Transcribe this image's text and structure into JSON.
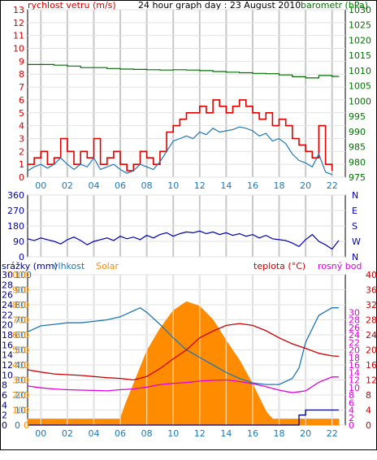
{
  "chart_data": [
    {
      "type": "line",
      "title": "24 hour graph day : 23 August 2010",
      "left_axis_label": "rychlost vetru (m/s)",
      "right_axis_label": "barometr (hPa)",
      "x_tick_labels": [
        "00",
        "02",
        "04",
        "06",
        "08",
        "10",
        "12",
        "14",
        "16",
        "18",
        "20",
        "22"
      ],
      "left_ticks": [
        "0",
        "1",
        "2",
        "3",
        "4",
        "5",
        "6",
        "7",
        "8",
        "9",
        "10",
        "11",
        "12",
        "13"
      ],
      "right_ticks": [
        "975",
        "980",
        "985",
        "990",
        "995",
        "1000",
        "1005",
        "1010",
        "1015",
        "1020",
        "1025",
        "1030"
      ],
      "left_ylim": [
        0,
        13
      ],
      "right_ylim": [
        975,
        1030
      ],
      "x_range": [
        23,
        47
      ],
      "grid": true,
      "series": [
        {
          "role": "gust",
          "color": "#e00000",
          "axis": "left",
          "x": [
            23.0,
            23.5,
            24.0,
            24.5,
            25.0,
            25.5,
            26.0,
            26.5,
            27.0,
            27.5,
            28.0,
            28.5,
            29.0,
            29.5,
            30.0,
            30.5,
            31.0,
            31.5,
            32.0,
            32.5,
            33.0,
            33.5,
            34.0,
            34.5,
            35.0,
            35.5,
            36.0,
            36.5,
            37.0,
            37.5,
            38.0,
            38.5,
            39.0,
            39.5,
            40.0,
            40.5,
            41.0,
            41.5,
            42.0,
            42.5,
            43.0,
            43.5,
            44.0,
            44.5,
            45.0,
            45.5,
            46.0
          ],
          "values": [
            1,
            1.5,
            2,
            1,
            1.5,
            3,
            2,
            1,
            2,
            1.5,
            3,
            1,
            1.5,
            2,
            1,
            0.5,
            1,
            2,
            1.5,
            1,
            2,
            3.5,
            4,
            4.5,
            5,
            5,
            5.5,
            5,
            6,
            5.5,
            5,
            5.5,
            6,
            5.5,
            5,
            4.5,
            5,
            4,
            4.5,
            4,
            3,
            2.5,
            2,
            1.5,
            4,
            1,
            0.5
          ]
        },
        {
          "role": "average",
          "color": "#1f77b4",
          "axis": "left",
          "x": [
            23.0,
            23.5,
            24.0,
            24.5,
            25.0,
            25.5,
            26.0,
            26.5,
            27.0,
            27.5,
            28.0,
            28.5,
            29.0,
            29.5,
            30.0,
            30.5,
            31.0,
            31.5,
            32.0,
            32.5,
            33.0,
            33.5,
            34.0,
            34.5,
            35.0,
            35.5,
            36.0,
            36.5,
            37.0,
            37.5,
            38.0,
            38.5,
            39.0,
            39.5,
            40.0,
            40.5,
            41.0,
            41.5,
            42.0,
            42.5,
            43.0,
            43.5,
            44.0,
            44.5,
            45.0,
            45.5,
            46.0
          ],
          "values": [
            0.5,
            0.8,
            1,
            0.7,
            1,
            1.5,
            1,
            0.6,
            1,
            0.8,
            1.5,
            0.6,
            0.8,
            1,
            0.6,
            0.3,
            0.5,
            1,
            0.8,
            0.6,
            1.2,
            2,
            2.8,
            3,
            3.2,
            3,
            3.5,
            3.3,
            3.8,
            3.5,
            3.6,
            3.7,
            3.9,
            3.8,
            3.6,
            3.2,
            3.4,
            2.8,
            3,
            2.6,
            1.8,
            1.3,
            1.1,
            0.8,
            1.8,
            0.4,
            0.2
          ]
        },
        {
          "role": "pressure",
          "color": "#007000",
          "axis": "right",
          "x": [
            23,
            24,
            25,
            26,
            27,
            28,
            29,
            30,
            31,
            32,
            33,
            34,
            35,
            36,
            37,
            38,
            39,
            40,
            41,
            42,
            43,
            44,
            45,
            46,
            46.5
          ],
          "values": [
            1012,
            1012,
            1011.8,
            1011.5,
            1011,
            1011,
            1010.7,
            1010.5,
            1010.4,
            1010.3,
            1010.2,
            1010.3,
            1010.2,
            1010,
            1009.7,
            1009.5,
            1009.3,
            1009.1,
            1009,
            1008.6,
            1008,
            1007.6,
            1008.4,
            1008.1,
            1008.2
          ]
        }
      ]
    },
    {
      "type": "line",
      "left_ticks": [
        "0",
        "90",
        "180",
        "270",
        "360"
      ],
      "left_ylim": [
        0,
        360
      ],
      "right_ticks": [
        "N",
        "W",
        "S",
        "E",
        "N"
      ],
      "x_range": [
        23,
        47
      ],
      "grid": true,
      "series": [
        {
          "role": "wind-direction",
          "color": "#0000b0",
          "x": [
            23.0,
            23.5,
            24.0,
            24.5,
            25.0,
            25.5,
            26.0,
            26.5,
            27.0,
            27.5,
            28.0,
            28.5,
            29.0,
            29.5,
            30.0,
            30.5,
            31.0,
            31.5,
            32.0,
            32.5,
            33.0,
            33.5,
            34.0,
            34.5,
            35.0,
            35.5,
            36.0,
            36.5,
            37.0,
            37.5,
            38.0,
            38.5,
            39.0,
            39.5,
            40.0,
            40.5,
            41.0,
            41.5,
            42.0,
            42.5,
            43.0,
            43.5,
            44.0,
            44.5,
            45.0,
            45.5,
            46.0,
            46.5
          ],
          "values": [
            105,
            95,
            110,
            100,
            90,
            75,
            100,
            115,
            95,
            70,
            90,
            100,
            110,
            95,
            120,
            105,
            115,
            100,
            125,
            110,
            130,
            140,
            120,
            135,
            145,
            140,
            150,
            135,
            145,
            130,
            140,
            125,
            135,
            120,
            130,
            110,
            125,
            105,
            100,
            95,
            80,
            60,
            100,
            130,
            90,
            70,
            45,
            95
          ]
        }
      ]
    },
    {
      "type": "area",
      "left_axis_labels": [
        "srážky (mm)",
        "vlhkost",
        "Solar"
      ],
      "right_axis_labels": [
        "teplota (°C)",
        "rosný bod"
      ],
      "x_tick_labels": [
        "00",
        "02",
        "04",
        "06",
        "08",
        "10",
        "12",
        "14",
        "16",
        "18",
        "20",
        "22"
      ],
      "ticks_rain": [
        "0",
        "2",
        "4",
        "6",
        "8",
        "10",
        "12",
        "14",
        "16",
        "18",
        "20",
        "22",
        "24",
        "26",
        "28",
        "30"
      ],
      "ticks_humidity": [
        "0",
        "10",
        "20",
        "30",
        "40",
        "50",
        "60",
        "70",
        "80",
        "90",
        "100"
      ],
      "ticks_solar": [
        "0",
        "100",
        "200",
        "300",
        "400",
        "500",
        "600",
        "700",
        "800",
        "900",
        "1000"
      ],
      "ticks_temp_outer": [
        "0",
        "4",
        "8",
        "12",
        "16",
        "20",
        "24",
        "28",
        "32",
        "36",
        "40"
      ],
      "ticks_temp_inner": [
        "0",
        "2",
        "4",
        "6",
        "8",
        "10",
        "12",
        "14",
        "16",
        "18",
        "20",
        "22",
        "24",
        "26",
        "28",
        "30"
      ],
      "ylim_humidity": [
        0,
        100
      ],
      "ylim_solar": [
        0,
        1000
      ],
      "ylim_temp": [
        0,
        40
      ],
      "ylim_rain": [
        0,
        30
      ],
      "x_range": [
        23,
        47
      ],
      "grid": true,
      "series": [
        {
          "role": "humidity",
          "color": "#1f77b4",
          "x": [
            23,
            24,
            25,
            26,
            27,
            28,
            29,
            30,
            31,
            31.5,
            32,
            33,
            34,
            35,
            36,
            37,
            38,
            39,
            40,
            41,
            42,
            43,
            43.5,
            44,
            45,
            46,
            46.5
          ],
          "values": [
            62,
            66,
            67,
            68,
            68,
            69,
            70,
            72,
            76,
            78,
            75,
            67,
            58,
            50,
            45,
            40,
            35,
            31,
            28,
            27,
            27,
            31,
            38,
            55,
            73,
            78,
            78
          ]
        },
        {
          "role": "temperature",
          "color": "#cc0000",
          "x": [
            23,
            24,
            25,
            26,
            27,
            28,
            29,
            30,
            31,
            32,
            33,
            34,
            35,
            36,
            37,
            38,
            39,
            40,
            41,
            42,
            43,
            44,
            45,
            46,
            46.5
          ],
          "values": [
            14.7,
            14.1,
            13.6,
            13.4,
            13.2,
            12.9,
            12.6,
            12.4,
            12,
            12.9,
            15,
            17.6,
            20,
            23.2,
            25,
            26.5,
            27,
            26.5,
            25.1,
            23.2,
            21.6,
            20.4,
            19.1,
            18.4,
            18.3
          ]
        },
        {
          "role": "dew-point",
          "color": "#e000e0",
          "x": [
            23,
            24,
            25,
            26,
            27,
            28,
            29,
            30,
            31,
            32,
            33,
            34,
            35,
            36,
            37,
            38,
            39,
            40,
            41,
            42,
            43,
            44,
            45,
            46,
            46.5
          ],
          "values": [
            10.4,
            9.9,
            9.6,
            9.4,
            9.3,
            9.2,
            9.1,
            9.4,
            9.6,
            10.1,
            10.8,
            11.1,
            11.3,
            11.7,
            11.9,
            12,
            11.6,
            11,
            10.2,
            9.3,
            8.6,
            9.1,
            11.4,
            12.8,
            12.8
          ]
        },
        {
          "role": "solar",
          "color": "#ff8c00",
          "x": [
            23,
            30,
            30.4,
            31,
            31.5,
            32,
            33,
            34,
            35,
            36,
            37,
            38,
            39,
            40,
            41,
            41.5,
            42,
            46.5
          ],
          "values": [
            40,
            40,
            140,
            270,
            380,
            490,
            640,
            760,
            820,
            790,
            700,
            560,
            430,
            270,
            90,
            40,
            40,
            40
          ]
        },
        {
          "role": "rain",
          "color": "#000080",
          "x": [
            23,
            43,
            43.5,
            44,
            46.5
          ],
          "values": [
            0,
            0,
            2,
            3,
            3
          ]
        }
      ]
    }
  ]
}
